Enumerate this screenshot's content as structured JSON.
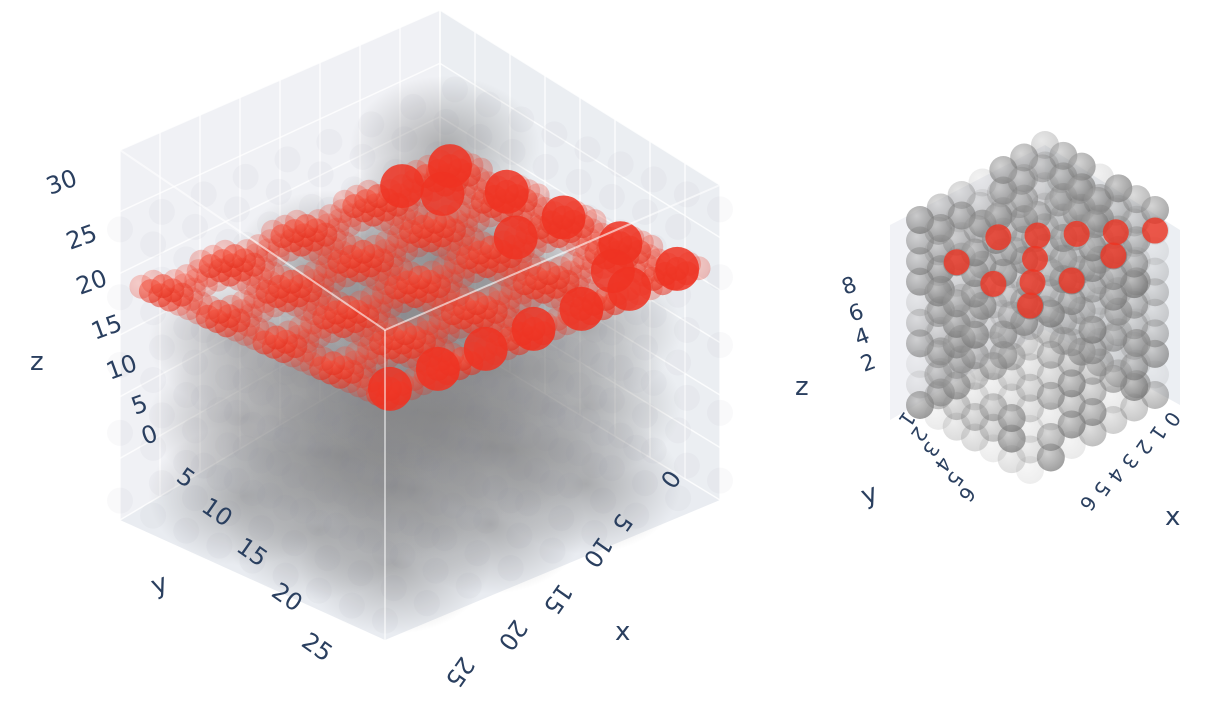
{
  "chart_data": [
    {
      "type": "scatter3d",
      "title": "",
      "xlabel": "x",
      "ylabel": "y",
      "zlabel": "z",
      "x_ticks": [
        "0",
        "5",
        "10",
        "15",
        "20",
        "25"
      ],
      "y_ticks": [
        "0",
        "5",
        "10",
        "15",
        "20",
        "25"
      ],
      "z_ticks": [
        "0",
        "5",
        "10",
        "15",
        "20",
        "25",
        "30"
      ],
      "xlim": [
        0,
        28
      ],
      "ylim": [
        0,
        28
      ],
      "zlim": [
        0,
        32
      ],
      "grid": true,
      "series": [
        {
          "color": "#808080",
          "note": "semi-transparent gray voxel cloud filling the volume",
          "points": [
            [
              4,
              4,
              4
            ],
            [
              12,
              4,
              4
            ],
            [
              20,
              4,
              4
            ],
            [
              4,
              12,
              4
            ],
            [
              12,
              12,
              4
            ],
            [
              20,
              12,
              4
            ],
            [
              4,
              20,
              4
            ],
            [
              12,
              20,
              4
            ],
            [
              20,
              20,
              4
            ],
            [
              4,
              4,
              12
            ],
            [
              12,
              4,
              12
            ],
            [
              20,
              4,
              12
            ],
            [
              4,
              12,
              12
            ],
            [
              12,
              12,
              12
            ],
            [
              20,
              12,
              12
            ],
            [
              4,
              20,
              12
            ],
            [
              12,
              20,
              12
            ],
            [
              20,
              20,
              12
            ],
            [
              4,
              4,
              20
            ],
            [
              12,
              4,
              20
            ],
            [
              20,
              4,
              20
            ],
            [
              4,
              12,
              20
            ],
            [
              12,
              12,
              20
            ],
            [
              20,
              12,
              20
            ],
            [
              4,
              20,
              20
            ],
            [
              12,
              20,
              20
            ],
            [
              20,
              20,
              20
            ],
            [
              8,
              8,
              28
            ],
            [
              16,
              8,
              28
            ],
            [
              8,
              16,
              28
            ],
            [
              16,
              16,
              28
            ],
            [
              24,
              24,
              28
            ]
          ]
        },
        {
          "color": "#ee3322",
          "note": "red lattice layer at top",
          "points": [
            [
              2,
              2,
              24
            ],
            [
              6,
              2,
              24
            ],
            [
              10,
              2,
              24
            ],
            [
              14,
              2,
              24
            ],
            [
              18,
              2,
              24
            ],
            [
              22,
              2,
              24
            ],
            [
              26,
              2,
              24
            ],
            [
              2,
              8,
              24
            ],
            [
              8,
              8,
              24
            ],
            [
              14,
              8,
              24
            ],
            [
              20,
              8,
              24
            ],
            [
              26,
              8,
              24
            ],
            [
              2,
              14,
              24
            ],
            [
              6,
              14,
              24
            ],
            [
              10,
              14,
              24
            ],
            [
              14,
              14,
              24
            ],
            [
              18,
              14,
              24
            ],
            [
              22,
              14,
              24
            ],
            [
              26,
              14,
              24
            ],
            [
              2,
              20,
              24
            ],
            [
              8,
              20,
              24
            ],
            [
              14,
              20,
              24
            ],
            [
              20,
              20,
              24
            ],
            [
              26,
              20,
              24
            ],
            [
              2,
              26,
              24
            ],
            [
              6,
              26,
              24
            ],
            [
              10,
              26,
              24
            ],
            [
              14,
              26,
              24
            ],
            [
              18,
              26,
              24
            ],
            [
              22,
              26,
              24
            ],
            [
              26,
              26,
              24
            ],
            [
              5,
              5,
              24
            ],
            [
              11,
              11,
              24
            ],
            [
              17,
              17,
              24
            ],
            [
              23,
              23,
              24
            ],
            [
              5,
              23,
              24
            ],
            [
              23,
              5,
              24
            ]
          ]
        }
      ]
    },
    {
      "type": "scatter3d",
      "title": "",
      "xlabel": "x",
      "ylabel": "y",
      "zlabel": "z",
      "x_ticks": [
        "0",
        "1",
        "2",
        "3",
        "4",
        "5",
        "6"
      ],
      "y_ticks": [
        "1",
        "2",
        "3",
        "4",
        "5",
        "6"
      ],
      "z_ticks": [
        "2",
        "4",
        "6",
        "8"
      ],
      "xlim": [
        0,
        6
      ],
      "ylim": [
        0,
        6
      ],
      "zlim": [
        0,
        9
      ],
      "grid": true,
      "series": [
        {
          "color": "#666666",
          "note": "gray spheres with varying opacity on 7x7x10 grid",
          "points": [
            [
              0,
              0,
              0
            ],
            [
              1,
              1,
              1
            ],
            [
              2,
              2,
              2
            ],
            [
              3,
              3,
              3
            ],
            [
              4,
              4,
              4
            ],
            [
              5,
              5,
              5
            ],
            [
              6,
              6,
              6
            ],
            [
              0,
              6,
              8
            ],
            [
              6,
              0,
              8
            ],
            [
              3,
              0,
              5
            ],
            [
              0,
              3,
              5
            ],
            [
              6,
              6,
              9
            ]
          ]
        },
        {
          "color": "#ee3322",
          "note": "red spheres near top layer",
          "points": [
            [
              0,
              0,
              8
            ],
            [
              2,
              0,
              8
            ],
            [
              4,
              0,
              8
            ],
            [
              6,
              0,
              8
            ],
            [
              0,
              2,
              8
            ],
            [
              0,
              4,
              8
            ],
            [
              2,
              2,
              8
            ],
            [
              4,
              2,
              8
            ],
            [
              2,
              4,
              8
            ],
            [
              1,
              1,
              8
            ],
            [
              3,
              3,
              8
            ],
            [
              5,
              1,
              8
            ]
          ]
        }
      ]
    }
  ]
}
